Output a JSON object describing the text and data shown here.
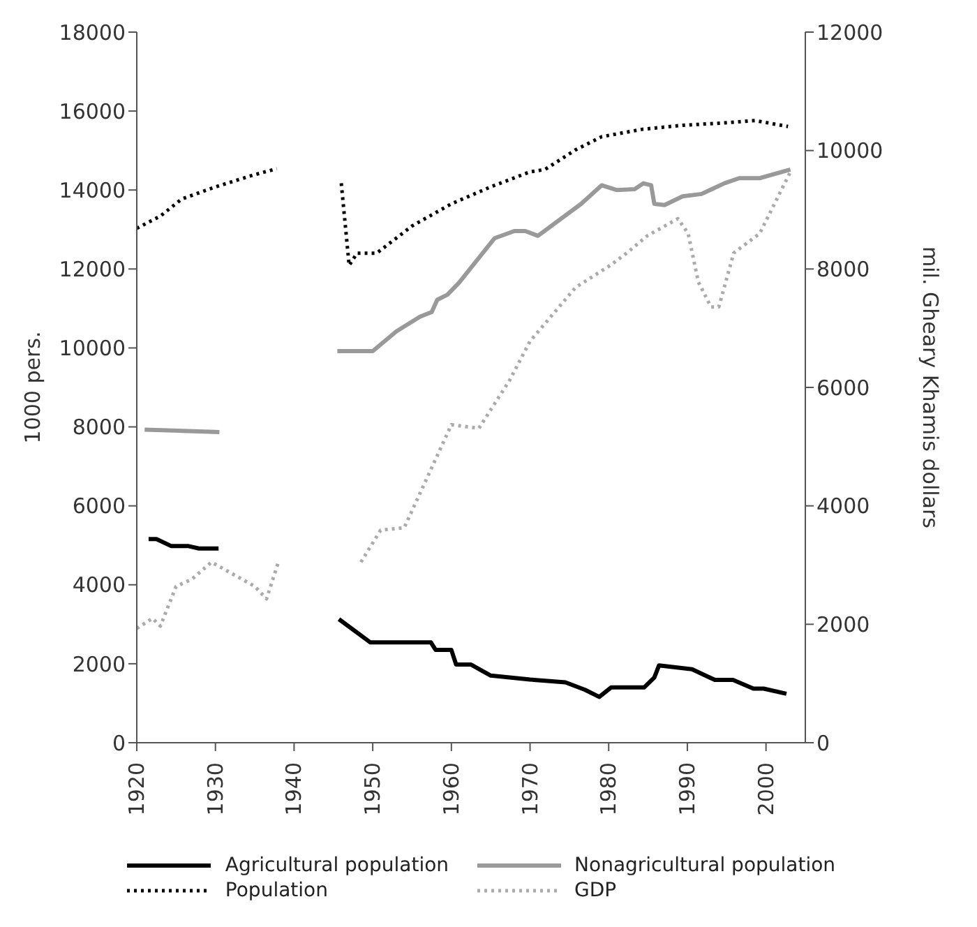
{
  "chart_data": {
    "type": "line",
    "ylabel": "1000 pers.",
    "y2label": "mil. Gheary Khamis dollars",
    "xlim": [
      1920,
      2005
    ],
    "xticks": [
      1920,
      1930,
      1940,
      1950,
      1960,
      1970,
      1980,
      1990,
      2000
    ],
    "ylim": [
      0,
      18000
    ],
    "yticks": [
      0,
      2000,
      4000,
      6000,
      8000,
      10000,
      12000,
      14000,
      16000,
      18000
    ],
    "y2lim": [
      0,
      12000
    ],
    "y2ticks": [
      0,
      2000,
      4000,
      6000,
      8000,
      10000,
      12000
    ],
    "legend": "bottom",
    "marker": "none",
    "series": [
      {
        "name": "Agricultural population",
        "color": "#000000",
        "line_style": "solid",
        "x": [
          1921.5,
          1922.5,
          1924.4,
          1926.6,
          1927.9,
          1930.4,
          1938,
          1945.7,
          1949.7,
          1957.4,
          1958,
          1960,
          1960.6,
          1962.5,
          1965,
          1970,
          1974.5,
          1977,
          1978.8,
          1980.3,
          1984.5,
          1985.8,
          1986.4,
          1990.6,
          1993.5,
          1995.8,
          1998.4,
          1999.7,
          2002.6
        ],
        "values": [
          5160,
          5160,
          4980,
          4980,
          4920,
          4920,
          null,
          3130,
          2540,
          2540,
          2350,
          2350,
          1980,
          1980,
          1700,
          1600,
          1530,
          1340,
          1160,
          1400,
          1400,
          1650,
          1960,
          1860,
          1590,
          1590,
          1370,
          1370,
          1240
        ]
      },
      {
        "name": "Nonagricultural population",
        "color": "#999999",
        "line_style": "solid",
        "x": [
          1921,
          1930.5,
          1938,
          1945.5,
          1950,
          1953,
          1956,
          1957.5,
          1958.2,
          1959.5,
          1961,
          1965.5,
          1968,
          1969.4,
          1971,
          1976.5,
          1979.1,
          1981,
          1983.3,
          1984.4,
          1985.4,
          1985.8,
          1987.1,
          1989.4,
          1991.8,
          1994.7,
          1996.6,
          1999.2,
          2003.1
        ],
        "values": [
          7930,
          7870,
          null,
          9920,
          9920,
          10420,
          10790,
          10910,
          11220,
          11350,
          11660,
          12780,
          12960,
          12960,
          12840,
          13650,
          14120,
          14000,
          14020,
          14170,
          14120,
          13650,
          13620,
          13840,
          13900,
          14170,
          14300,
          14300,
          14520
        ]
      },
      {
        "name": "Population",
        "color": "#000000",
        "line_style": "dotted",
        "x": [
          1920,
          1923,
          1925.7,
          1930,
          1935,
          1937.8,
          1942,
          1946,
          1947,
          1948,
          1950.5,
          1955,
          1960,
          1965,
          1970,
          1971.9,
          1975.8,
          1979.1,
          1984.3,
          1989.4,
          1994.7,
          1998.6,
          2002.8
        ],
        "values": [
          13030,
          13340,
          13770,
          14080,
          14390,
          14540,
          null,
          14170,
          12090,
          12400,
          12400,
          13090,
          13650,
          14080,
          14460,
          14520,
          15020,
          15350,
          15540,
          15640,
          15700,
          15760,
          15610
        ]
      },
      {
        "name": "GDP",
        "color": "#aaaaaa",
        "line_style": "dotted",
        "axis": "y2",
        "x": [
          1920,
          1922,
          1923,
          1925,
          1927,
          1929.5,
          1935,
          1936.5,
          1938,
          1943,
          1948.5,
          1951,
          1954,
          1960,
          1963.5,
          1967.4,
          1970,
          1975.8,
          1980.3,
          1982.3,
          1984.9,
          1988.8,
          1990.1,
          1991.4,
          1993,
          1994,
          1995.9,
          1999.2,
          2003.1
        ],
        "values": [
          1930,
          2100,
          1970,
          2640,
          2760,
          3050,
          2640,
          2430,
          3050,
          null,
          3050,
          3590,
          3630,
          5370,
          5310,
          6120,
          6780,
          7690,
          8070,
          8270,
          8560,
          8850,
          8600,
          7780,
          7360,
          7360,
          8270,
          8600,
          9640
        ]
      }
    ]
  }
}
